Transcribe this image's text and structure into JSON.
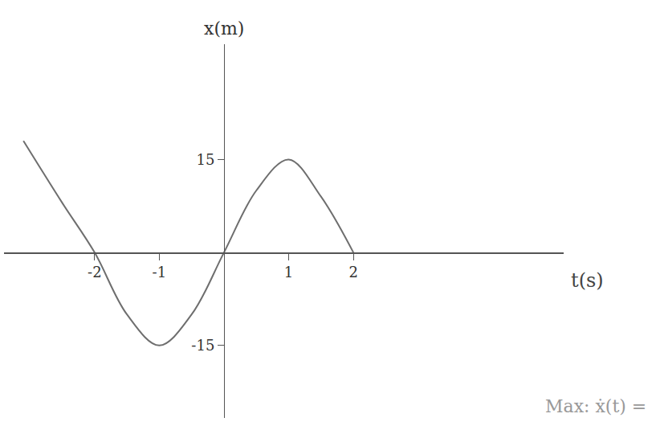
{
  "chart_data": {
    "type": "line",
    "x_label": "t(s)",
    "y_label": "x(m)",
    "x": [
      -3.1,
      -2.5,
      -2,
      -1.5,
      -1,
      -0.5,
      0,
      0.5,
      1,
      1.5,
      2
    ],
    "values": [
      18,
      8,
      0,
      -10,
      -15,
      -10,
      0,
      10,
      15,
      9,
      0
    ],
    "color": "#6e6e6e",
    "xlim": [
      -3.4,
      5.25
    ],
    "ylim": [
      -26.7,
      33.6
    ],
    "xticks": [
      -2,
      -1,
      1,
      2
    ],
    "yticks": [
      -15,
      15
    ],
    "grid": false,
    "line_style": "smooth",
    "annotations": [
      "Max: ẋ(t) ="
    ]
  }
}
